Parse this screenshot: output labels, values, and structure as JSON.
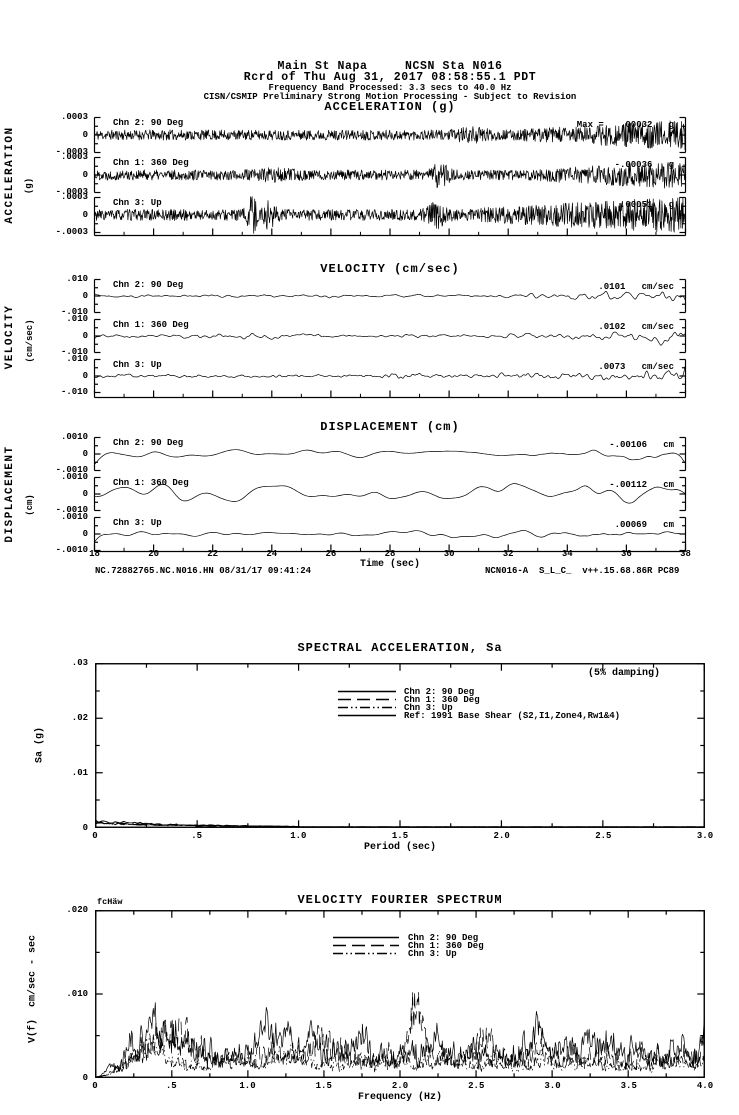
{
  "header": {
    "line1": "Main St Napa     NCSN Sta N016",
    "line2": "Rcrd of Thu Aug 31, 2017 08:58:55.1 PDT",
    "line3": "Frequency Band Processed: 3.3 secs to 40.0 Hz",
    "line4": "CISN/CSMIP Preliminary Strong Motion Processing - Subject to Revision"
  },
  "footer": {
    "left": "NC.72882765.NC.N016.HN 08/31/17 09:41:24",
    "right": "NCN016-A  S_L_C_  v++.15.68.86R PC89"
  },
  "chart_data": [
    {
      "id": "acceleration",
      "type": "line",
      "title": "ACCELERATION (g)",
      "axis_label": "ACCELERATION",
      "axis_unit": "(g)",
      "xlim": [
        18,
        38
      ],
      "x_ticks": [
        "18",
        "20",
        "22",
        "24",
        "26",
        "28",
        "30",
        "32",
        "34",
        "36",
        "38"
      ],
      "grid": false,
      "strips": [
        {
          "channel": "Chn 2: 90 Deg",
          "ylim": [
            -0.0003,
            0.0003
          ],
          "y_ticks": [
            ".0003",
            "0",
            "-.0003"
          ],
          "peak_annotation": "Max =   .00032   g",
          "peak_value": 0.00032,
          "unit": "g",
          "trace": {
            "seed": 11,
            "n": 1150,
            "smooth": 0,
            "base": 0.3,
            "grow_from": 0.7,
            "grow_amp": 0.6,
            "bursts": [
              {
                "at": 0.64,
                "amp": 0.2,
                "w": 0.02
              }
            ]
          }
        },
        {
          "channel": "Chn 1: 360 Deg",
          "ylim": [
            -0.0003,
            0.0003
          ],
          "y_ticks": [
            ".0003",
            "0",
            "-.0003"
          ],
          "peak_annotation": "-.00036   g",
          "peak_value": -0.00036,
          "unit": "g",
          "trace": {
            "seed": 22,
            "n": 1150,
            "smooth": 0,
            "base": 0.3,
            "grow_from": 0.72,
            "grow_amp": 0.55,
            "bursts": [
              {
                "at": 0.585,
                "amp": 0.55,
                "w": 0.01
              },
              {
                "at": 0.3,
                "amp": 0.15,
                "w": 0.03
              }
            ]
          }
        },
        {
          "channel": "Chn 3: Up",
          "ylim": [
            -0.0003,
            0.0003
          ],
          "y_ticks": [
            ".0003",
            "0",
            "-.0003"
          ],
          "peak_annotation": ".00051   g",
          "peak_value": 0.00051,
          "unit": "g",
          "trace": {
            "seed": 33,
            "n": 1150,
            "smooth": 0,
            "base": 0.33,
            "grow_from": 0.6,
            "grow_amp": 0.75,
            "bursts": [
              {
                "at": 0.265,
                "amp": 1.1,
                "w": 0.006
              },
              {
                "at": 0.295,
                "amp": 0.6,
                "w": 0.008
              },
              {
                "at": 0.58,
                "amp": 0.5,
                "w": 0.012
              }
            ]
          }
        }
      ]
    },
    {
      "id": "velocity",
      "type": "line",
      "title": "VELOCITY (cm/sec)",
      "axis_label": "VELOCITY",
      "axis_unit": "(cm/sec)",
      "xlim": [
        18,
        38
      ],
      "x_ticks": [
        "18",
        "20",
        "22",
        "24",
        "26",
        "28",
        "30",
        "32",
        "34",
        "36",
        "38"
      ],
      "grid": false,
      "strips": [
        {
          "channel": "Chn 2: 90 Deg",
          "ylim": [
            -0.01,
            0.01
          ],
          "y_ticks": [
            ".010",
            "0",
            "-.010"
          ],
          "peak_annotation": ".0101   cm/sec",
          "peak_value": 0.0101,
          "unit": "cm/sec",
          "trace": {
            "seed": 41,
            "n": 700,
            "smooth": 5,
            "base": 0.13,
            "grow_from": 0.66,
            "grow_amp": 0.5,
            "bursts": []
          }
        },
        {
          "channel": "Chn 1: 360 Deg",
          "ylim": [
            -0.01,
            0.01
          ],
          "y_ticks": [
            ".010",
            "0",
            "-.010"
          ],
          "peak_annotation": ".0102   cm/sec",
          "peak_value": 0.0102,
          "unit": "cm/sec",
          "trace": {
            "seed": 52,
            "n": 700,
            "smooth": 5,
            "base": 0.14,
            "grow_from": 0.68,
            "grow_amp": 0.5,
            "bursts": [
              {
                "at": 0.25,
                "amp": 0.12,
                "w": 0.05
              }
            ]
          }
        },
        {
          "channel": "Chn 3: Up",
          "ylim": [
            -0.01,
            0.01
          ],
          "y_ticks": [
            ".010",
            "0",
            "-.010"
          ],
          "peak_annotation": ".0073   cm/sec",
          "peak_value": 0.0073,
          "unit": "cm/sec",
          "trace": {
            "seed": 63,
            "n": 700,
            "smooth": 3,
            "base": 0.15,
            "grow_from": 0.6,
            "grow_amp": 0.45,
            "bursts": [
              {
                "at": 0.52,
                "amp": 0.25,
                "w": 0.02
              }
            ]
          }
        }
      ]
    },
    {
      "id": "displacement",
      "type": "line",
      "title": "DISPLACEMENT (cm)",
      "axis_label": "DISPLACEMENT",
      "axis_unit": "(cm)",
      "xlabel": "Time (sec)",
      "xlim": [
        18,
        38
      ],
      "x_ticks": [
        "18",
        "20",
        "22",
        "24",
        "26",
        "28",
        "30",
        "32",
        "34",
        "36",
        "38"
      ],
      "grid": false,
      "strips": [
        {
          "channel": "Chn 2: 90 Deg",
          "ylim": [
            -0.001,
            0.001
          ],
          "y_ticks": [
            ".0010",
            "0",
            "-.0010"
          ],
          "peak_annotation": "-.00106   cm",
          "peak_value": -0.00106,
          "unit": "cm",
          "trace": {
            "seed": 74,
            "n": 300,
            "smooth": 18,
            "base": 0.62,
            "grow_from": 0.8,
            "grow_amp": 0.1,
            "bursts": [],
            "tail": {
              "from": 0.55,
              "amp": 0.3,
              "smooth": 5
            }
          }
        },
        {
          "channel": "Chn 1: 360 Deg",
          "ylim": [
            -0.001,
            0.001
          ],
          "y_ticks": [
            ".0010",
            "0",
            "-.0010"
          ],
          "peak_annotation": "-.00112   cm",
          "peak_value": -0.00112,
          "unit": "cm",
          "trace": {
            "seed": 85,
            "n": 300,
            "smooth": 18,
            "base": 0.6,
            "grow_from": 0.8,
            "grow_amp": 0.15,
            "bursts": [],
            "tail": {
              "from": 0.58,
              "amp": 0.32,
              "smooth": 5
            }
          }
        },
        {
          "channel": "Chn 3: Up",
          "ylim": [
            -0.001,
            0.001
          ],
          "y_ticks": [
            ".0010",
            "0",
            "-.0010"
          ],
          "peak_annotation": ".00069   cm",
          "peak_value": 0.00069,
          "unit": "cm",
          "trace": {
            "seed": 96,
            "n": 320,
            "smooth": 12,
            "base": 0.45,
            "grow_from": 0.8,
            "grow_amp": 0.1,
            "bursts": [
              {
                "at": 0.62,
                "amp": 0.25,
                "w": 0.05
              }
            ],
            "tail": {
              "from": 0.5,
              "amp": 0.28,
              "smooth": 4
            }
          }
        }
      ]
    },
    {
      "id": "spectral_acceleration",
      "type": "line",
      "title": "SPECTRAL ACCELERATION, Sa",
      "annotation": "(5% damping)",
      "xlabel": "Period (sec)",
      "ylabel": "Sa (g)",
      "xlim": [
        0,
        3.0
      ],
      "ylim": [
        0,
        0.03
      ],
      "x_ticks": [
        "0",
        ".5",
        "1.0",
        "1.5",
        "2.0",
        "2.5",
        "3.0"
      ],
      "y_ticks": [
        ".03",
        ".02",
        ".01",
        "0"
      ],
      "grid": false,
      "legend_position": "top-center",
      "legend": [
        {
          "label": "Chn 2: 90 Deg",
          "style": "solid"
        },
        {
          "label": "Chn 1: 360 Deg",
          "style": "long-dash"
        },
        {
          "label": "Chn 3: Up",
          "style": "dash-dot-dot"
        },
        {
          "label": "Ref: 1991 Base Shear (S2,I1,Zone4,Rw1&4)",
          "style": "solid"
        }
      ],
      "series": [
        {
          "name": "Chn 2: 90 Deg",
          "style": "solid",
          "peak_sa_g": 0.0014,
          "decay_period_sec": 0.95,
          "seed": 71
        },
        {
          "name": "Chn 1: 360 Deg",
          "style": "long-dash",
          "peak_sa_g": 0.0012,
          "decay_period_sec": 0.9,
          "seed": 72
        },
        {
          "name": "Chn 3: Up",
          "style": "dash-dot-dot",
          "peak_sa_g": 0.001,
          "decay_period_sec": 0.8,
          "seed": 73
        },
        {
          "name": "Ref: 1991 Base Shear (S2,I1,Zone4,Rw1&4)",
          "style": "solid",
          "peak_sa_g": 0.0009,
          "decay_period_sec": 1.0,
          "seed": 74
        }
      ]
    },
    {
      "id": "velocity_fourier_spectrum",
      "type": "line",
      "title": "VELOCITY FOURIER SPECTRUM",
      "corner_label": "fcHäw",
      "xlabel": "Frequency (Hz)",
      "ylabel": "V(f)  cm/sec - sec",
      "xlim": [
        0,
        4.0
      ],
      "ylim": [
        0,
        0.02
      ],
      "x_ticks": [
        "0",
        ".5",
        "1.0",
        "1.5",
        "2.0",
        "2.5",
        "3.0",
        "3.5",
        "4.0"
      ],
      "y_ticks": [
        ".020",
        ".010",
        "0"
      ],
      "grid": false,
      "legend": [
        {
          "label": "Chn 2: 90 Deg",
          "style": "solid"
        },
        {
          "label": "Chn 1: 360 Deg",
          "style": "long-dash"
        },
        {
          "label": "Chn 3: Up",
          "style": "dash-dot-dot"
        }
      ],
      "series": [
        {
          "name": "Chn 2: 90 Deg",
          "style": "solid",
          "seed": 81,
          "scale": 0.0052,
          "peaks": [
            {
              "at": 0.45,
              "amp": 0.0045,
              "w": 0.12
            },
            {
              "at": 1.15,
              "amp": 0.003,
              "w": 0.07
            },
            {
              "at": 2.9,
              "amp": 0.0035,
              "w": 0.08
            },
            {
              "at": 3.35,
              "amp": 0.0042,
              "w": 0.05
            }
          ]
        },
        {
          "name": "Chn 1: 360 Deg",
          "style": "long-dash",
          "seed": 82,
          "scale": 0.005,
          "peaks": [
            {
              "at": 0.5,
              "amp": 0.006,
              "w": 0.09
            },
            {
              "at": 1.5,
              "amp": 0.0035,
              "w": 0.06
            },
            {
              "at": 2.1,
              "amp": 0.0105,
              "w": 0.045
            },
            {
              "at": 2.55,
              "amp": 0.004,
              "w": 0.05
            }
          ]
        },
        {
          "name": "Chn 3: Up",
          "style": "dash-dot-dot",
          "seed": 83,
          "scale": 0.0035,
          "peaks": [
            {
              "at": 0.35,
              "amp": 0.003,
              "w": 0.1
            },
            {
              "at": 1.3,
              "amp": 0.0018,
              "w": 0.08
            }
          ]
        }
      ]
    }
  ]
}
